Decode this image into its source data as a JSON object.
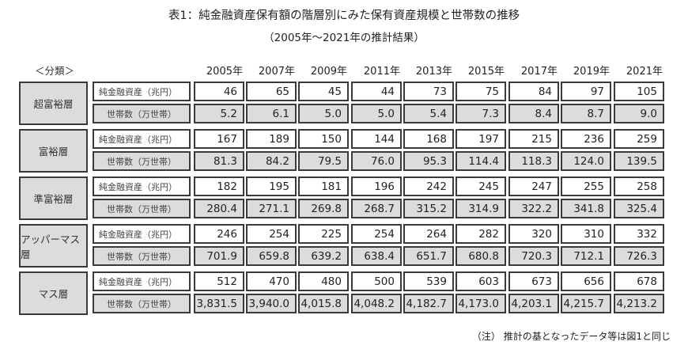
{
  "title": "表1：純金融資産保有額の階層別にみた保有資産規模と世帯数の推移",
  "subtitle": "（2005年～2021年の推計結果）",
  "category_header": "＜分類＞",
  "years": [
    "2005年",
    "2007年",
    "2009年",
    "2011年",
    "2013年",
    "2015年",
    "2017年",
    "2019年",
    "2021年"
  ],
  "row_labels": {
    "asset": "純金融資産（兆円）",
    "households": "世帯数（万世帯）"
  },
  "groups": [
    {
      "name": "超富裕層",
      "asset": [
        "46",
        "65",
        "45",
        "44",
        "73",
        "75",
        "84",
        "97",
        "105"
      ],
      "households": [
        "5.2",
        "6.1",
        "5.0",
        "5.0",
        "5.4",
        "7.3",
        "8.4",
        "8.7",
        "9.0"
      ]
    },
    {
      "name": "富裕層",
      "asset": [
        "167",
        "189",
        "150",
        "144",
        "168",
        "197",
        "215",
        "236",
        "259"
      ],
      "households": [
        "81.3",
        "84.2",
        "79.5",
        "76.0",
        "95.3",
        "114.4",
        "118.3",
        "124.0",
        "139.5"
      ]
    },
    {
      "name": "準富裕層",
      "asset": [
        "182",
        "195",
        "181",
        "196",
        "242",
        "245",
        "247",
        "255",
        "258"
      ],
      "households": [
        "280.4",
        "271.1",
        "269.8",
        "268.7",
        "315.2",
        "314.9",
        "322.2",
        "341.8",
        "325.4"
      ]
    },
    {
      "name": "アッパーマス層",
      "asset": [
        "246",
        "254",
        "225",
        "254",
        "264",
        "282",
        "320",
        "310",
        "332"
      ],
      "households": [
        "701.9",
        "659.8",
        "639.2",
        "638.4",
        "651.7",
        "680.8",
        "720.3",
        "712.1",
        "726.3"
      ]
    },
    {
      "name": "マス層",
      "asset": [
        "512",
        "470",
        "480",
        "500",
        "539",
        "603",
        "673",
        "656",
        "678"
      ],
      "households": [
        "3,831.5",
        "3,940.0",
        "4,015.8",
        "4,048.2",
        "4,182.7",
        "4,173.0",
        "4,203.1",
        "4,215.7",
        "4,213.2"
      ]
    }
  ],
  "note": "（注） 推計の基となったデータ等は図1と同じ",
  "colors": {
    "shaded_cell": "#dcdcdc",
    "border": "#3a3a3a",
    "white_cell": "#ffffff"
  }
}
